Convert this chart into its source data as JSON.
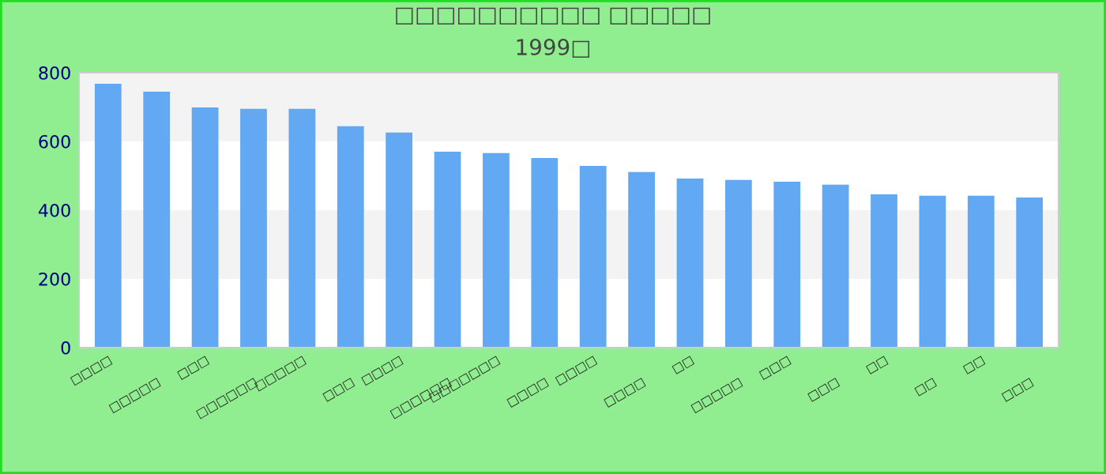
{
  "chart_data": {
    "type": "bar",
    "title": "□□□□□□□□□□ □□□□□",
    "subtitle": "1999□",
    "categories": [
      "□□□□",
      "□□□□□",
      "□□□",
      "□□□□□□",
      "□□□□□",
      "□□□",
      "□□□□",
      "□□□□□□",
      "□□□□□□□",
      "□□□□",
      "□□□□",
      "□□□□",
      "□□",
      "□□□□□",
      "□□□",
      "□□□",
      "□□",
      "□□",
      "□□",
      "□□□"
    ],
    "values": [
      768,
      745,
      699,
      695,
      695,
      644,
      626,
      570,
      566,
      552,
      529,
      511,
      492,
      488,
      483,
      474,
      446,
      442,
      442,
      437
    ],
    "color": "#63a8f3",
    "ylim": [
      0,
      800
    ],
    "yticks": [
      0,
      200,
      400,
      600,
      800
    ],
    "bands": [
      {
        "axis": "y",
        "from": 200,
        "to": 400,
        "color": "#f3f3f3"
      },
      {
        "axis": "y",
        "from": 600,
        "to": 800,
        "color": "#f3f3f3"
      }
    ],
    "grid": false
  }
}
